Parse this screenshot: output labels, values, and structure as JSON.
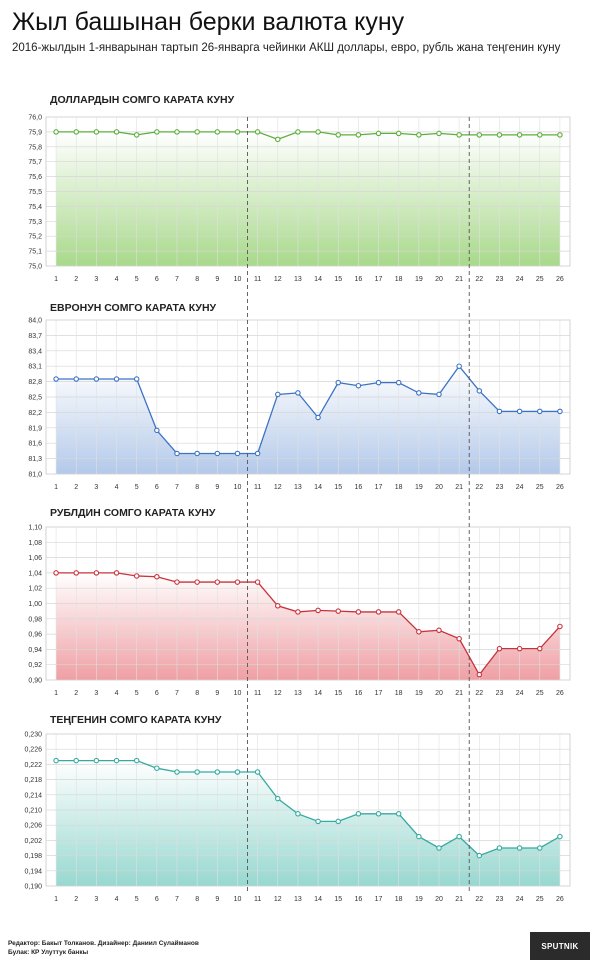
{
  "header": {
    "title": "Жыл башынан берки валюта куну",
    "subtitle": "2016-жылдын 1-январынан тартып 26-январга чейинки АКШ доллары, евро, рубль жана теңгенин куну"
  },
  "footer": {
    "credits": "Редактор: Бакыт Толканов. Дизайнер: Даниил Сулайманов",
    "source": "Булак: КР Улуттук банкы",
    "logo_text": "SPUTNIK"
  },
  "chart_data": [
    {
      "type": "line",
      "title": "ДОЛЛАРДЫН СОМГО КАРАТА КУНУ",
      "x": [
        1,
        2,
        3,
        4,
        5,
        6,
        7,
        8,
        9,
        10,
        11,
        12,
        13,
        14,
        15,
        16,
        17,
        18,
        19,
        20,
        21,
        22,
        23,
        24,
        25,
        26
      ],
      "yticks": [
        "75,0",
        "75,1",
        "75,2",
        "75,3",
        "75,4",
        "75,5",
        "75,6",
        "75,7",
        "75,8",
        "75,9",
        "76,0"
      ],
      "ylim": [
        75.0,
        76.0
      ],
      "values": [
        75.9,
        75.9,
        75.9,
        75.9,
        75.88,
        75.9,
        75.9,
        75.9,
        75.9,
        75.9,
        75.9,
        75.85,
        75.9,
        75.9,
        75.88,
        75.88,
        75.89,
        75.89,
        75.88,
        75.89,
        75.88,
        75.88,
        75.88,
        75.88,
        75.88,
        75.88
      ],
      "color": "#5cae3c",
      "fill_top": "#ffffff",
      "fill_bottom": "#a8d98a",
      "grid": true,
      "vlines": [
        11,
        22
      ]
    },
    {
      "type": "line",
      "title": "ЕВРОНУН СОМГО КАРАТА КУНУ",
      "x": [
        1,
        2,
        3,
        4,
        5,
        6,
        7,
        8,
        9,
        10,
        11,
        12,
        13,
        14,
        15,
        16,
        17,
        18,
        19,
        20,
        21,
        22,
        23,
        24,
        25,
        26
      ],
      "yticks": [
        "81,0",
        "81,3",
        "81,6",
        "81,9",
        "82,2",
        "82,5",
        "82,8",
        "83,1",
        "83,4",
        "83,7",
        "84,0"
      ],
      "ylim": [
        81.0,
        84.0
      ],
      "values": [
        82.85,
        82.85,
        82.85,
        82.85,
        82.85,
        81.85,
        81.4,
        81.4,
        81.4,
        81.4,
        81.4,
        82.55,
        82.58,
        82.1,
        82.78,
        82.72,
        82.78,
        82.78,
        82.58,
        82.55,
        83.1,
        82.62,
        82.22,
        82.22,
        82.22,
        82.22
      ],
      "color": "#3d73c4",
      "fill_top": "#ffffff",
      "fill_bottom": "#b3c9ea",
      "grid": true,
      "vlines": [
        11,
        22
      ]
    },
    {
      "type": "line",
      "title": "РУБЛДИН СОМГО КАРАТА КУНУ",
      "x": [
        1,
        2,
        3,
        4,
        5,
        6,
        7,
        8,
        9,
        10,
        11,
        12,
        13,
        14,
        15,
        16,
        17,
        18,
        19,
        20,
        21,
        22,
        23,
        24,
        25,
        26
      ],
      "yticks": [
        "0,90",
        "0,92",
        "0,94",
        "0,96",
        "0,98",
        "1,00",
        "1,02",
        "1,04",
        "1,06",
        "1,08",
        "1,10"
      ],
      "ylim": [
        0.9,
        1.1
      ],
      "values": [
        1.04,
        1.04,
        1.04,
        1.04,
        1.036,
        1.035,
        1.028,
        1.028,
        1.028,
        1.028,
        1.028,
        0.997,
        0.989,
        0.991,
        0.99,
        0.989,
        0.989,
        0.989,
        0.963,
        0.965,
        0.954,
        0.907,
        0.941,
        0.941,
        0.941,
        0.97
      ],
      "color": "#c8323c",
      "fill_top": "#ffffff",
      "fill_bottom": "#ef9fa4",
      "grid": true,
      "vlines": [
        11,
        22
      ]
    },
    {
      "type": "line",
      "title": "ТЕҢГЕНИН СОМГО КАРАТА КУНУ",
      "x": [
        1,
        2,
        3,
        4,
        5,
        6,
        7,
        8,
        9,
        10,
        11,
        12,
        13,
        14,
        15,
        16,
        17,
        18,
        19,
        20,
        21,
        22,
        23,
        24,
        25,
        26
      ],
      "yticks": [
        "0,190",
        "0,194",
        "0,198",
        "0,202",
        "0,206",
        "0,210",
        "0,214",
        "0,218",
        "0,222",
        "0,226",
        "0,230"
      ],
      "ylim": [
        0.19,
        0.23
      ],
      "values": [
        0.223,
        0.223,
        0.223,
        0.223,
        0.223,
        0.221,
        0.22,
        0.22,
        0.22,
        0.22,
        0.22,
        0.213,
        0.209,
        0.207,
        0.207,
        0.209,
        0.209,
        0.209,
        0.203,
        0.2,
        0.203,
        0.198,
        0.2,
        0.2,
        0.2,
        0.203
      ],
      "color": "#35aaa0",
      "fill_top": "#ffffff",
      "fill_bottom": "#97d8d0",
      "grid": true,
      "vlines": [
        11,
        22
      ]
    }
  ]
}
